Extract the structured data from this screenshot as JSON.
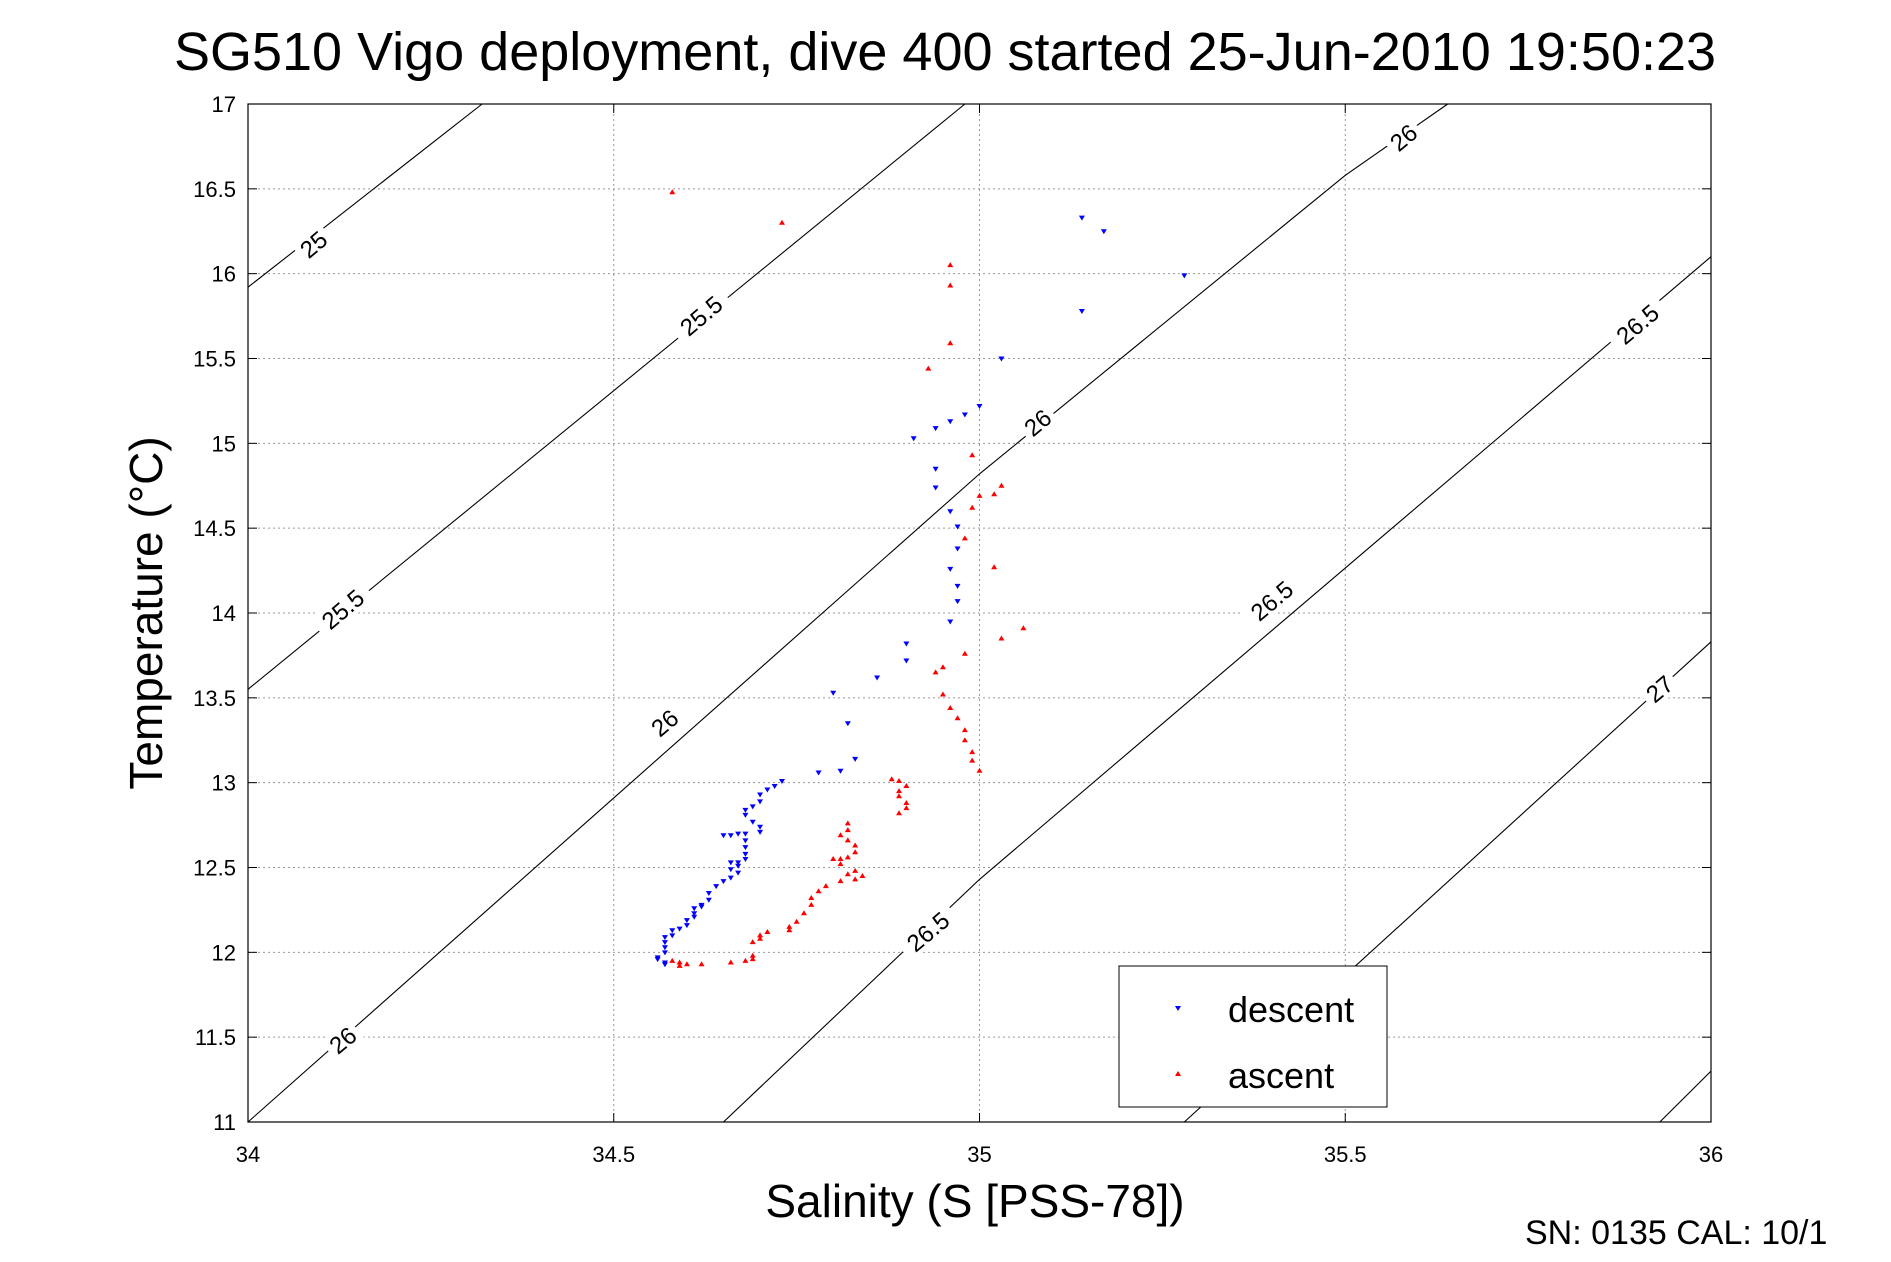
{
  "chart_data": {
    "type": "scatter",
    "title": "SG510 Vigo deployment, dive 400 started 25-Jun-2010 19:50:23",
    "xlabel": "Salinity (S [PSS-78])",
    "ylabel": "Temperature (°C)",
    "xlim": [
      34,
      36
    ],
    "ylim": [
      11,
      17
    ],
    "xticks": [
      34,
      34.5,
      35,
      35.5,
      36
    ],
    "xtick_labels": [
      "34",
      "34.5",
      "35",
      "35.5",
      "36"
    ],
    "yticks": [
      11,
      11.5,
      12,
      12.5,
      13,
      13.5,
      14,
      14.5,
      15,
      15.5,
      16,
      16.5,
      17
    ],
    "ytick_labels": [
      "11",
      "11.5",
      "12",
      "12.5",
      "13",
      "13.5",
      "14",
      "14.5",
      "15",
      "15.5",
      "16",
      "16.5",
      "17"
    ],
    "grid": true,
    "legend_position": "bottom-right",
    "footer": "SN: 0135  CAL: 10/1",
    "contours": [
      {
        "label": "25",
        "points": [
          [
            34,
            15.92
          ],
          [
            34.32,
            17.0
          ]
        ]
      },
      {
        "label": "25.5",
        "points": [
          [
            34,
            13.55
          ],
          [
            34.98,
            17.0
          ]
        ]
      },
      {
        "label": "26",
        "points": [
          [
            34,
            11.0
          ],
          [
            35.0,
            14.82
          ],
          [
            35.5,
            16.58
          ],
          [
            35.64,
            17.0
          ]
        ]
      },
      {
        "label": "26.5",
        "points": [
          [
            34.65,
            11.0
          ],
          [
            35.0,
            12.43
          ],
          [
            36.0,
            16.1
          ]
        ]
      },
      {
        "label": "27",
        "points": [
          [
            35.28,
            11.0
          ],
          [
            36.0,
            13.83
          ]
        ]
      },
      {
        "label": "",
        "points": [
          [
            35.93,
            11.0
          ],
          [
            36.0,
            11.3
          ]
        ]
      }
    ],
    "contour_labels": [
      {
        "text": "25",
        "x": 34.09,
        "y": 16.17
      },
      {
        "text": "25.5",
        "x": 34.62,
        "y": 15.75
      },
      {
        "text": "26",
        "x": 35.08,
        "y": 15.12
      },
      {
        "text": "26",
        "x": 35.58,
        "y": 16.8
      },
      {
        "text": "25.5",
        "x": 34.13,
        "y": 14.02
      },
      {
        "text": "26",
        "x": 34.57,
        "y": 13.35
      },
      {
        "text": "26.5",
        "x": 35.9,
        "y": 15.7
      },
      {
        "text": "26.5",
        "x": 35.4,
        "y": 14.07
      },
      {
        "text": "26.5",
        "x": 34.93,
        "y": 12.12
      },
      {
        "text": "26",
        "x": 34.13,
        "y": 11.48
      },
      {
        "text": "27",
        "x": 35.93,
        "y": 13.55
      }
    ],
    "series": [
      {
        "name": "descent",
        "color": "#0000ff",
        "marker": "triangle-down",
        "points": [
          [
            35.14,
            16.33
          ],
          [
            35.17,
            16.25
          ],
          [
            35.28,
            15.99
          ],
          [
            35.14,
            15.78
          ],
          [
            35.03,
            15.5
          ],
          [
            35.0,
            15.22
          ],
          [
            34.98,
            15.17
          ],
          [
            34.96,
            15.13
          ],
          [
            34.94,
            15.09
          ],
          [
            34.91,
            15.03
          ],
          [
            34.94,
            14.85
          ],
          [
            34.94,
            14.74
          ],
          [
            34.96,
            14.6
          ],
          [
            34.97,
            14.51
          ],
          [
            34.97,
            14.38
          ],
          [
            34.96,
            14.26
          ],
          [
            34.97,
            14.16
          ],
          [
            34.97,
            14.07
          ],
          [
            34.96,
            13.95
          ],
          [
            34.9,
            13.82
          ],
          [
            34.9,
            13.72
          ],
          [
            34.86,
            13.62
          ],
          [
            34.8,
            13.53
          ],
          [
            34.82,
            13.35
          ],
          [
            34.83,
            13.14
          ],
          [
            34.81,
            13.07
          ],
          [
            34.78,
            13.06
          ],
          [
            34.73,
            13.01
          ],
          [
            34.72,
            12.98
          ],
          [
            34.71,
            12.96
          ],
          [
            34.7,
            12.93
          ],
          [
            34.7,
            12.89
          ],
          [
            34.69,
            12.86
          ],
          [
            34.68,
            12.84
          ],
          [
            34.68,
            12.81
          ],
          [
            34.69,
            12.77
          ],
          [
            34.7,
            12.74
          ],
          [
            34.7,
            12.71
          ],
          [
            34.68,
            12.7
          ],
          [
            34.67,
            12.7
          ],
          [
            34.66,
            12.69
          ],
          [
            34.65,
            12.69
          ],
          [
            34.68,
            12.66
          ],
          [
            34.68,
            12.62
          ],
          [
            34.68,
            12.58
          ],
          [
            34.68,
            12.55
          ],
          [
            34.67,
            12.53
          ],
          [
            34.67,
            12.51
          ],
          [
            34.66,
            12.49
          ],
          [
            34.66,
            12.53
          ],
          [
            34.67,
            12.47
          ],
          [
            34.66,
            12.44
          ],
          [
            34.65,
            12.42
          ],
          [
            34.64,
            12.39
          ],
          [
            34.63,
            12.35
          ],
          [
            34.63,
            12.31
          ],
          [
            34.62,
            12.28
          ],
          [
            34.62,
            12.27
          ],
          [
            34.61,
            12.26
          ],
          [
            34.61,
            12.23
          ],
          [
            34.61,
            12.21
          ],
          [
            34.6,
            12.19
          ],
          [
            34.6,
            12.16
          ],
          [
            34.59,
            12.14
          ],
          [
            34.58,
            12.13
          ],
          [
            34.58,
            12.1
          ],
          [
            34.57,
            12.09
          ],
          [
            34.57,
            12.06
          ],
          [
            34.57,
            12.03
          ],
          [
            34.57,
            12.0
          ],
          [
            34.56,
            11.97
          ],
          [
            34.56,
            11.96
          ],
          [
            34.57,
            11.94
          ],
          [
            34.57,
            11.93
          ]
        ]
      },
      {
        "name": "ascent",
        "color": "#ff0000",
        "marker": "triangle-up",
        "points": [
          [
            34.58,
            16.48
          ],
          [
            34.73,
            16.3
          ],
          [
            34.96,
            16.05
          ],
          [
            34.96,
            15.93
          ],
          [
            34.96,
            15.59
          ],
          [
            34.93,
            15.44
          ],
          [
            34.99,
            14.93
          ],
          [
            35.03,
            14.75
          ],
          [
            35.02,
            14.7
          ],
          [
            35.0,
            14.69
          ],
          [
            34.99,
            14.62
          ],
          [
            34.98,
            14.44
          ],
          [
            35.02,
            14.27
          ],
          [
            35.06,
            13.91
          ],
          [
            35.03,
            13.85
          ],
          [
            34.98,
            13.76
          ],
          [
            34.95,
            13.68
          ],
          [
            34.94,
            13.65
          ],
          [
            34.95,
            13.52
          ],
          [
            34.96,
            13.44
          ],
          [
            34.97,
            13.38
          ],
          [
            34.98,
            13.31
          ],
          [
            34.98,
            13.25
          ],
          [
            34.99,
            13.18
          ],
          [
            34.99,
            13.13
          ],
          [
            35.0,
            13.07
          ],
          [
            34.88,
            13.02
          ],
          [
            34.89,
            13.01
          ],
          [
            34.9,
            12.98
          ],
          [
            34.89,
            12.95
          ],
          [
            34.89,
            12.92
          ],
          [
            34.9,
            12.88
          ],
          [
            34.9,
            12.85
          ],
          [
            34.89,
            12.82
          ],
          [
            34.82,
            12.76
          ],
          [
            34.82,
            12.72
          ],
          [
            34.81,
            12.69
          ],
          [
            34.82,
            12.66
          ],
          [
            34.83,
            12.63
          ],
          [
            34.83,
            12.59
          ],
          [
            34.82,
            12.56
          ],
          [
            34.81,
            12.55
          ],
          [
            34.81,
            12.52
          ],
          [
            34.8,
            12.55
          ],
          [
            34.83,
            12.48
          ],
          [
            34.82,
            12.46
          ],
          [
            34.84,
            12.45
          ],
          [
            34.83,
            12.43
          ],
          [
            34.81,
            12.42
          ],
          [
            34.79,
            12.39
          ],
          [
            34.78,
            12.36
          ],
          [
            34.77,
            12.32
          ],
          [
            34.77,
            12.28
          ],
          [
            34.76,
            12.23
          ],
          [
            34.75,
            12.18
          ],
          [
            34.74,
            12.15
          ],
          [
            34.74,
            12.13
          ],
          [
            34.71,
            12.12
          ],
          [
            34.7,
            12.1
          ],
          [
            34.7,
            12.08
          ],
          [
            34.69,
            12.06
          ],
          [
            34.69,
            11.98
          ],
          [
            34.69,
            11.96
          ],
          [
            34.68,
            11.95
          ],
          [
            34.66,
            11.94
          ],
          [
            34.62,
            11.93
          ],
          [
            34.6,
            11.93
          ],
          [
            34.59,
            11.94
          ],
          [
            34.59,
            11.92
          ],
          [
            34.58,
            11.95
          ]
        ]
      }
    ]
  }
}
